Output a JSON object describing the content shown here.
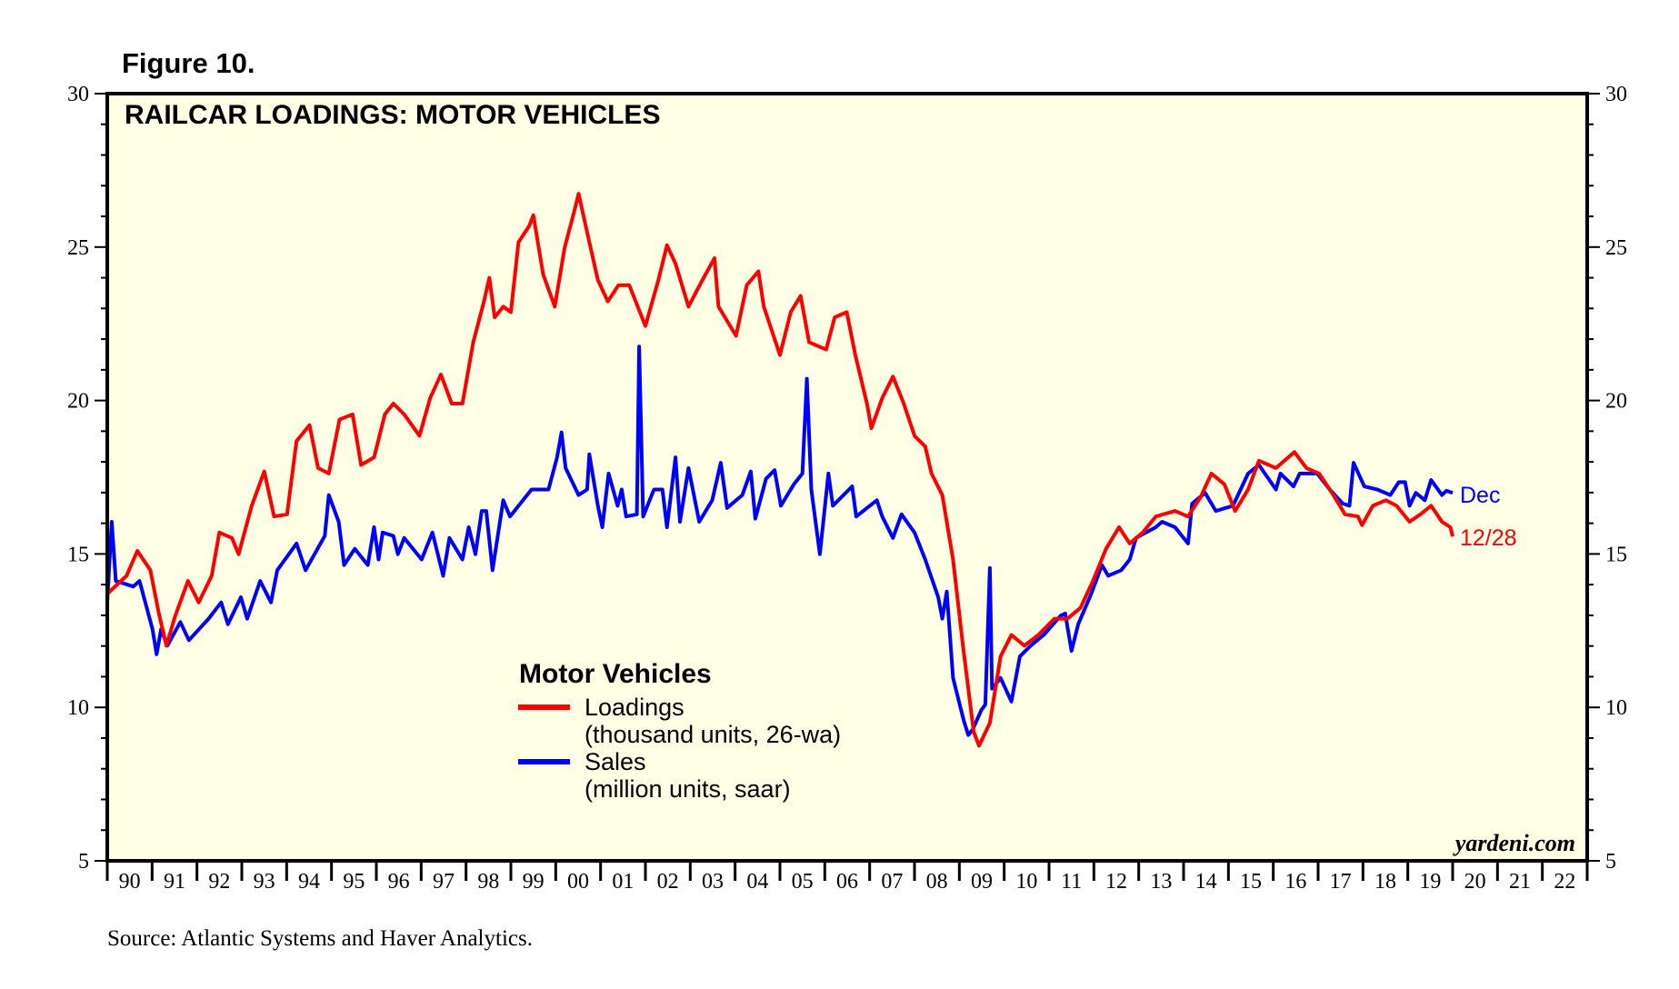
{
  "figure_label": "Figure 10.",
  "source": "Source: Atlantic Systems and Haver Analytics.",
  "watermark": "yardeni.com",
  "colors": {
    "loadings": "#ff0000",
    "sales": "#0000ff",
    "plot_bg": "#ffffe6"
  },
  "chart_data": {
    "type": "line",
    "title": "RAILCAR LOADINGS: MOTOR VEHICLES",
    "xlabel": "",
    "ylabel": "",
    "xlim": [
      1990,
      2023
    ],
    "ylim": [
      5,
      30
    ],
    "y_ticks": [
      5,
      10,
      15,
      20,
      25,
      30
    ],
    "x_tick_labels": [
      "90",
      "91",
      "92",
      "93",
      "94",
      "95",
      "96",
      "97",
      "98",
      "99",
      "00",
      "01",
      "02",
      "03",
      "04",
      "05",
      "06",
      "07",
      "08",
      "09",
      "10",
      "11",
      "12",
      "13",
      "14",
      "15",
      "16",
      "17",
      "18",
      "19",
      "20",
      "21",
      "22"
    ],
    "grid": false,
    "legend": {
      "title": "Motor Vehicles",
      "placement": "center-bottom",
      "entries": [
        {
          "label": "Loadings",
          "sublabel": "(thousand units, 26-wa)"
        },
        {
          "label": "Sales",
          "sublabel": "(million units, saar)"
        }
      ]
    },
    "annotations": {
      "sales_end": "Dec",
      "loadings_end": "12/28"
    },
    "series": [
      {
        "name": "Loadings",
        "axis": "left",
        "points": [
          [
            1990.0,
            13.7
          ],
          [
            1990.43,
            14.29
          ],
          [
            1990.67,
            15.1
          ],
          [
            1990.96,
            14.47
          ],
          [
            1991.15,
            13.07
          ],
          [
            1991.32,
            12.01
          ],
          [
            1991.51,
            12.96
          ],
          [
            1991.8,
            14.12
          ],
          [
            1992.04,
            13.42
          ],
          [
            1992.33,
            14.29
          ],
          [
            1992.5,
            15.7
          ],
          [
            1992.78,
            15.52
          ],
          [
            1992.93,
            14.99
          ],
          [
            1993.22,
            16.57
          ],
          [
            1993.5,
            17.69
          ],
          [
            1993.72,
            16.22
          ],
          [
            1994.01,
            16.29
          ],
          [
            1994.22,
            18.68
          ],
          [
            1994.51,
            19.2
          ],
          [
            1994.7,
            17.8
          ],
          [
            1994.94,
            17.62
          ],
          [
            1995.18,
            19.38
          ],
          [
            1995.47,
            19.55
          ],
          [
            1995.66,
            17.9
          ],
          [
            1995.95,
            18.15
          ],
          [
            1996.19,
            19.55
          ],
          [
            1996.38,
            19.9
          ],
          [
            1996.62,
            19.55
          ],
          [
            1996.96,
            18.85
          ],
          [
            1997.2,
            20.08
          ],
          [
            1997.44,
            20.85
          ],
          [
            1997.68,
            19.9
          ],
          [
            1997.92,
            19.9
          ],
          [
            1998.16,
            21.9
          ],
          [
            1998.4,
            23.23
          ],
          [
            1998.52,
            24.0
          ],
          [
            1998.64,
            22.71
          ],
          [
            1998.83,
            23.06
          ],
          [
            1999.0,
            22.88
          ],
          [
            1999.17,
            25.16
          ],
          [
            1999.41,
            25.69
          ],
          [
            1999.5,
            26.04
          ],
          [
            1999.72,
            24.11
          ],
          [
            1999.98,
            23.06
          ],
          [
            2000.2,
            24.99
          ],
          [
            2000.42,
            26.21
          ],
          [
            2000.51,
            26.74
          ],
          [
            2000.75,
            25.16
          ],
          [
            2000.94,
            23.93
          ],
          [
            2001.16,
            23.23
          ],
          [
            2001.4,
            23.76
          ],
          [
            2001.64,
            23.76
          ],
          [
            2002.0,
            22.43
          ],
          [
            2002.29,
            23.93
          ],
          [
            2002.48,
            25.06
          ],
          [
            2002.67,
            24.46
          ],
          [
            2002.96,
            23.06
          ],
          [
            2003.25,
            23.87
          ],
          [
            2003.54,
            24.64
          ],
          [
            2003.63,
            23.06
          ],
          [
            2004.02,
            22.11
          ],
          [
            2004.26,
            23.76
          ],
          [
            2004.52,
            24.21
          ],
          [
            2004.64,
            23.06
          ],
          [
            2005.0,
            21.48
          ],
          [
            2005.24,
            22.88
          ],
          [
            2005.46,
            23.41
          ],
          [
            2005.65,
            21.9
          ],
          [
            2006.03,
            21.66
          ],
          [
            2006.22,
            22.71
          ],
          [
            2006.49,
            22.88
          ],
          [
            2006.68,
            21.48
          ],
          [
            2006.94,
            19.9
          ],
          [
            2007.04,
            19.1
          ],
          [
            2007.28,
            20.08
          ],
          [
            2007.52,
            20.78
          ],
          [
            2007.76,
            19.9
          ],
          [
            2008.0,
            18.85
          ],
          [
            2008.24,
            18.5
          ],
          [
            2008.38,
            17.62
          ],
          [
            2008.62,
            16.92
          ],
          [
            2008.86,
            14.82
          ],
          [
            2009.08,
            12.01
          ],
          [
            2009.32,
            9.21
          ],
          [
            2009.44,
            8.75
          ],
          [
            2009.68,
            9.49
          ],
          [
            2009.92,
            11.66
          ],
          [
            2010.16,
            12.36
          ],
          [
            2010.45,
            12.01
          ],
          [
            2010.76,
            12.36
          ],
          [
            2011.12,
            12.89
          ],
          [
            2011.41,
            12.89
          ],
          [
            2011.7,
            13.24
          ],
          [
            2011.98,
            14.12
          ],
          [
            2012.27,
            15.17
          ],
          [
            2012.56,
            15.87
          ],
          [
            2012.8,
            15.34
          ],
          [
            2013.09,
            15.7
          ],
          [
            2013.38,
            16.22
          ],
          [
            2013.81,
            16.4
          ],
          [
            2014.1,
            16.22
          ],
          [
            2014.38,
            16.85
          ],
          [
            2014.62,
            17.62
          ],
          [
            2014.91,
            17.27
          ],
          [
            2015.15,
            16.4
          ],
          [
            2015.44,
            17.1
          ],
          [
            2015.68,
            18.04
          ],
          [
            2016.06,
            17.8
          ],
          [
            2016.47,
            18.32
          ],
          [
            2016.74,
            17.8
          ],
          [
            2017.02,
            17.62
          ],
          [
            2017.31,
            16.99
          ],
          [
            2017.6,
            16.29
          ],
          [
            2017.89,
            16.22
          ],
          [
            2017.98,
            15.94
          ],
          [
            2018.22,
            16.57
          ],
          [
            2018.51,
            16.75
          ],
          [
            2018.75,
            16.57
          ],
          [
            2019.04,
            16.05
          ],
          [
            2019.28,
            16.29
          ],
          [
            2019.52,
            16.57
          ],
          [
            2019.76,
            16.05
          ],
          [
            2019.95,
            15.87
          ],
          [
            2020.0,
            15.57
          ]
        ]
      },
      {
        "name": "Sales",
        "axis": "right",
        "points": [
          [
            1990.0,
            13.42
          ],
          [
            1990.1,
            16.05
          ],
          [
            1990.19,
            14.12
          ],
          [
            1990.58,
            13.94
          ],
          [
            1990.72,
            14.12
          ],
          [
            1991.01,
            12.54
          ],
          [
            1991.1,
            11.73
          ],
          [
            1991.2,
            12.54
          ],
          [
            1991.34,
            12.01
          ],
          [
            1991.63,
            12.78
          ],
          [
            1991.82,
            12.19
          ],
          [
            1992.26,
            12.89
          ],
          [
            1992.54,
            13.42
          ],
          [
            1992.69,
            12.71
          ],
          [
            1992.98,
            13.59
          ],
          [
            1993.12,
            12.89
          ],
          [
            1993.41,
            14.12
          ],
          [
            1993.65,
            13.42
          ],
          [
            1993.79,
            14.47
          ],
          [
            1994.22,
            15.34
          ],
          [
            1994.42,
            14.47
          ],
          [
            1994.85,
            15.59
          ],
          [
            1994.94,
            16.92
          ],
          [
            1995.16,
            16.05
          ],
          [
            1995.28,
            14.64
          ],
          [
            1995.52,
            15.17
          ],
          [
            1995.81,
            14.64
          ],
          [
            1995.95,
            15.87
          ],
          [
            1996.05,
            14.82
          ],
          [
            1996.14,
            15.7
          ],
          [
            1996.38,
            15.59
          ],
          [
            1996.48,
            14.99
          ],
          [
            1996.62,
            15.52
          ],
          [
            1997.01,
            14.82
          ],
          [
            1997.25,
            15.7
          ],
          [
            1997.49,
            14.29
          ],
          [
            1997.63,
            15.52
          ],
          [
            1997.92,
            14.82
          ],
          [
            1998.06,
            15.87
          ],
          [
            1998.21,
            14.99
          ],
          [
            1998.35,
            16.4
          ],
          [
            1998.45,
            16.4
          ],
          [
            1998.59,
            14.47
          ],
          [
            1998.83,
            16.75
          ],
          [
            1998.98,
            16.22
          ],
          [
            1999.46,
            17.1
          ],
          [
            1999.84,
            17.1
          ],
          [
            2000.03,
            18.15
          ],
          [
            2000.13,
            18.96
          ],
          [
            2000.22,
            17.8
          ],
          [
            2000.51,
            16.92
          ],
          [
            2000.7,
            17.1
          ],
          [
            2000.75,
            18.25
          ],
          [
            2000.94,
            16.57
          ],
          [
            2001.04,
            15.87
          ],
          [
            2001.18,
            17.62
          ],
          [
            2001.38,
            16.57
          ],
          [
            2001.47,
            17.1
          ],
          [
            2001.57,
            16.22
          ],
          [
            2001.81,
            16.29
          ],
          [
            2001.86,
            21.76
          ],
          [
            2001.95,
            16.22
          ],
          [
            2002.19,
            17.1
          ],
          [
            2002.38,
            17.1
          ],
          [
            2002.48,
            15.87
          ],
          [
            2002.67,
            18.15
          ],
          [
            2002.77,
            16.05
          ],
          [
            2002.96,
            17.8
          ],
          [
            2003.2,
            16.05
          ],
          [
            2003.49,
            16.75
          ],
          [
            2003.68,
            17.97
          ],
          [
            2003.82,
            16.5
          ],
          [
            2004.16,
            16.92
          ],
          [
            2004.35,
            17.69
          ],
          [
            2004.45,
            16.15
          ],
          [
            2004.69,
            17.45
          ],
          [
            2004.88,
            17.73
          ],
          [
            2005.02,
            16.57
          ],
          [
            2005.31,
            17.27
          ],
          [
            2005.5,
            17.62
          ],
          [
            2005.6,
            20.71
          ],
          [
            2005.7,
            17.1
          ],
          [
            2005.89,
            14.99
          ],
          [
            2006.08,
            17.62
          ],
          [
            2006.18,
            16.57
          ],
          [
            2006.61,
            17.2
          ],
          [
            2006.7,
            16.22
          ],
          [
            2007.16,
            16.75
          ],
          [
            2007.28,
            16.22
          ],
          [
            2007.52,
            15.52
          ],
          [
            2007.71,
            16.29
          ],
          [
            2008.0,
            15.7
          ],
          [
            2008.24,
            14.82
          ],
          [
            2008.53,
            13.59
          ],
          [
            2008.62,
            12.89
          ],
          [
            2008.72,
            13.77
          ],
          [
            2008.86,
            10.96
          ],
          [
            2009.1,
            9.56
          ],
          [
            2009.2,
            9.1
          ],
          [
            2009.3,
            9.28
          ],
          [
            2009.49,
            9.91
          ],
          [
            2009.58,
            10.09
          ],
          [
            2009.68,
            14.54
          ],
          [
            2009.73,
            10.61
          ],
          [
            2009.92,
            10.96
          ],
          [
            2010.16,
            10.19
          ],
          [
            2010.35,
            11.66
          ],
          [
            2010.59,
            12.01
          ],
          [
            2010.88,
            12.36
          ],
          [
            2011.26,
            12.99
          ],
          [
            2011.36,
            13.06
          ],
          [
            2011.5,
            11.84
          ],
          [
            2011.65,
            12.71
          ],
          [
            2011.94,
            13.7
          ],
          [
            2012.18,
            14.64
          ],
          [
            2012.32,
            14.29
          ],
          [
            2012.61,
            14.47
          ],
          [
            2012.8,
            14.82
          ],
          [
            2012.94,
            15.52
          ],
          [
            2013.38,
            15.87
          ],
          [
            2013.52,
            16.05
          ],
          [
            2013.81,
            15.87
          ],
          [
            2014.1,
            15.34
          ],
          [
            2014.19,
            16.64
          ],
          [
            2014.48,
            16.99
          ],
          [
            2014.72,
            16.4
          ],
          [
            2015.1,
            16.57
          ],
          [
            2015.44,
            17.62
          ],
          [
            2015.68,
            17.9
          ],
          [
            2016.06,
            17.1
          ],
          [
            2016.16,
            17.62
          ],
          [
            2016.45,
            17.2
          ],
          [
            2016.59,
            17.62
          ],
          [
            2016.98,
            17.62
          ],
          [
            2017.26,
            17.1
          ],
          [
            2017.55,
            16.64
          ],
          [
            2017.7,
            16.57
          ],
          [
            2017.79,
            17.97
          ],
          [
            2018.03,
            17.2
          ],
          [
            2018.32,
            17.1
          ],
          [
            2018.61,
            16.92
          ],
          [
            2018.8,
            17.34
          ],
          [
            2018.94,
            17.34
          ],
          [
            2019.04,
            16.57
          ],
          [
            2019.18,
            16.99
          ],
          [
            2019.38,
            16.75
          ],
          [
            2019.52,
            17.41
          ],
          [
            2019.76,
            16.92
          ],
          [
            2019.86,
            17.06
          ],
          [
            2020.0,
            16.99
          ]
        ]
      }
    ]
  }
}
